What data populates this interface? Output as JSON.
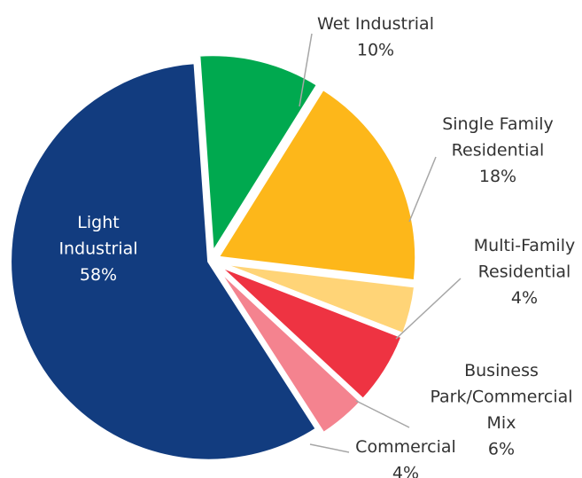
{
  "chart_data": {
    "type": "pie",
    "slices": [
      {
        "label_lines": [
          "Wet Industrial",
          "10%"
        ],
        "category": "Wet Industrial",
        "value": 10,
        "color": "#00a94f"
      },
      {
        "label_lines": [
          "Single Family",
          "Residential",
          "18%"
        ],
        "category": "Single Family Residential",
        "value": 18,
        "color": "#fdb71a"
      },
      {
        "label_lines": [
          "Multi-Family",
          "Residential",
          "4%"
        ],
        "category": "Multi-Family Residential",
        "value": 4,
        "color": "#ffd477"
      },
      {
        "label_lines": [
          "Business",
          "Park/Commercial",
          "Mix",
          "6%"
        ],
        "category": "Business Park/Commercial Mix",
        "value": 6,
        "color": "#ee3342"
      },
      {
        "label_lines": [
          "Commercial",
          "4%"
        ],
        "category": "Commercial",
        "value": 4,
        "color": "#f4838f"
      },
      {
        "label_lines": [
          "Light",
          "Industrial",
          "58%"
        ],
        "category": "Light Industrial",
        "value": 58,
        "color": "#123c7f"
      }
    ]
  }
}
